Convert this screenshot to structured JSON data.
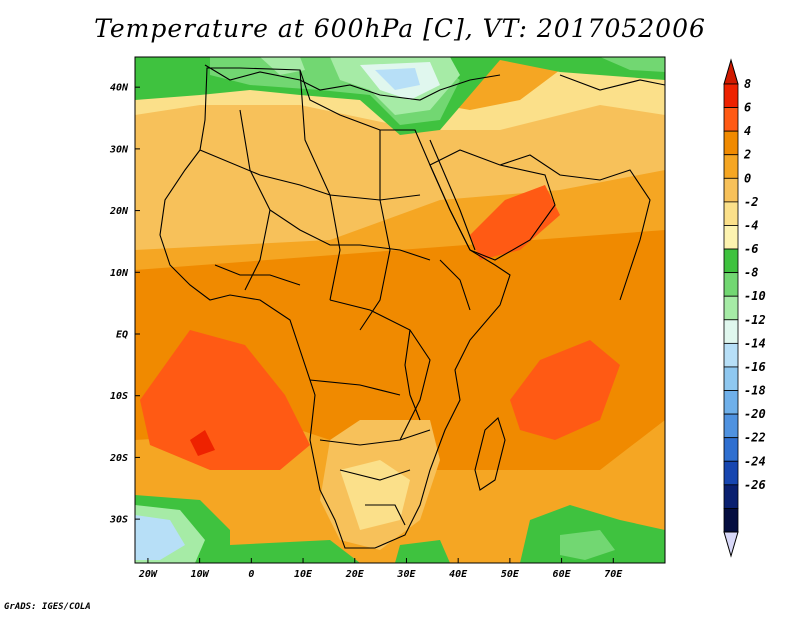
{
  "title": "Temperature at 600hPa [C], VT: 2017052006",
  "credit": "GrADS: IGES/COLA",
  "map": {
    "lat_ticks": [
      {
        "label": "40N",
        "lat": 40
      },
      {
        "label": "30N",
        "lat": 30
      },
      {
        "label": "20N",
        "lat": 20
      },
      {
        "label": "10N",
        "lat": 10
      },
      {
        "label": "EQ",
        "lat": 0
      },
      {
        "label": "10S",
        "lat": -10
      },
      {
        "label": "20S",
        "lat": -20
      },
      {
        "label": "30S",
        "lat": -30
      }
    ],
    "lon_ticks": [
      {
        "label": "20W",
        "lon": -20
      },
      {
        "label": "10W",
        "lon": -10
      },
      {
        "label": "0",
        "lon": 0
      },
      {
        "label": "10E",
        "lon": 10
      },
      {
        "label": "20E",
        "lon": 20
      },
      {
        "label": "30E",
        "lon": 30
      },
      {
        "label": "40E",
        "lon": 40
      },
      {
        "label": "50E",
        "lon": 50
      },
      {
        "label": "60E",
        "lon": 60
      },
      {
        "label": "70E",
        "lon": 70
      }
    ]
  },
  "colorbar": {
    "labels": [
      "8",
      "6",
      "4",
      "2",
      "0",
      "-2",
      "-4",
      "-6",
      "-8",
      "-10",
      "-12",
      "-14",
      "-16",
      "-18",
      "-20",
      "-22",
      "-24",
      "-26"
    ],
    "colors": [
      "#ee2200",
      "#ff5a14",
      "#f08a00",
      "#f5a623",
      "#f7c15a",
      "#fbe08a",
      "#fdf3b0",
      "#3fc23f",
      "#72d772",
      "#a6eba6",
      "#e0f7ee",
      "#b7dff7",
      "#8fc8f0",
      "#6fb0ea",
      "#4f92e0",
      "#2f6fd0",
      "#1746b0",
      "#0a2070",
      "#050e40"
    ],
    "top_arrow_color": "#d01a00",
    "bottom_arrow_color": "#d8d8f8"
  }
}
